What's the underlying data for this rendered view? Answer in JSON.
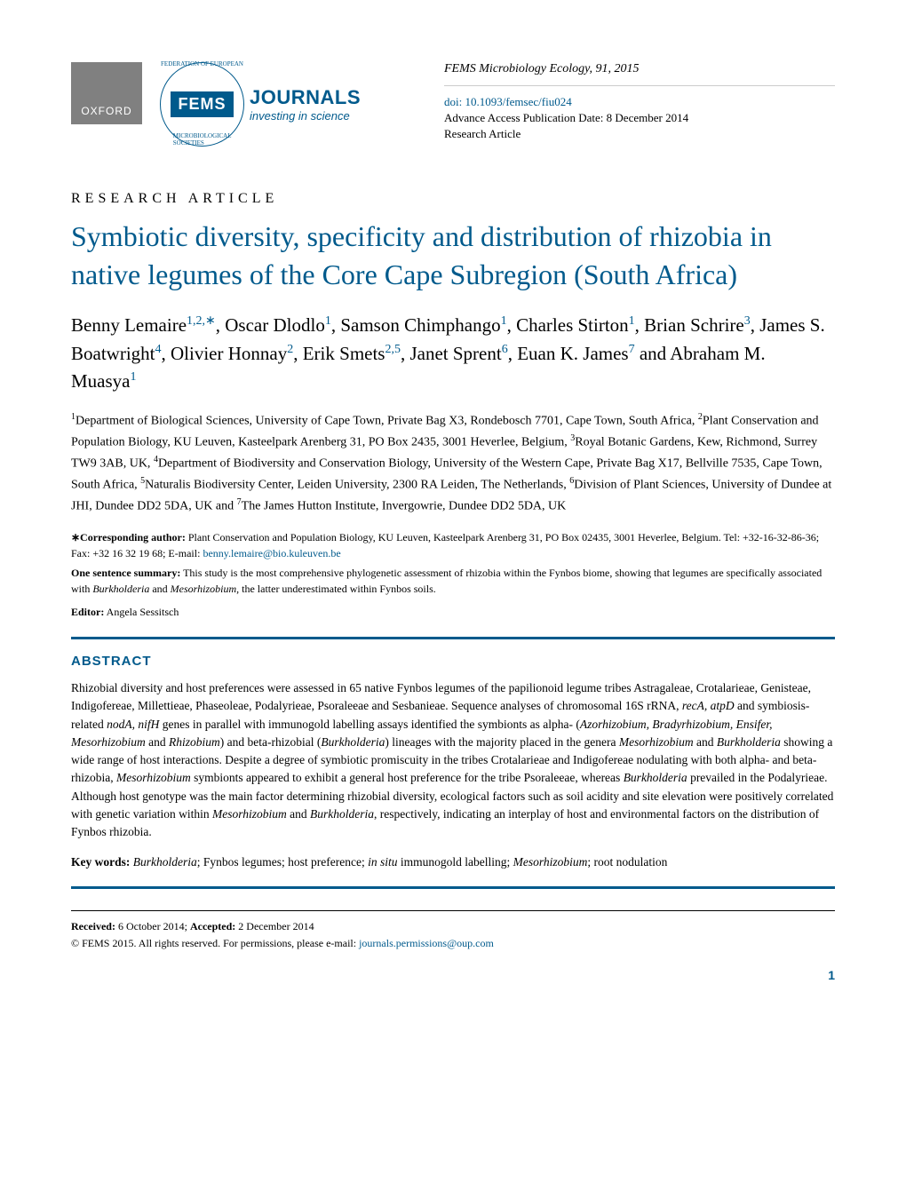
{
  "header": {
    "oxford_label": "OXFORD",
    "fems_label": "FEMS",
    "fems_circle_top": "FEDERATION OF EUROPEAN",
    "fems_circle_bottom": "MICROBIOLOGICAL SOCIETIES",
    "journals_main": "JOURNALS",
    "journals_sub": "investing in science",
    "citation": "FEMS Microbiology Ecology, 91, 2015",
    "doi": "doi: 10.1093/femsec/fiu024",
    "advance_date": "Advance Access Publication Date: 8 December 2014",
    "article_type_small": "Research Article"
  },
  "article": {
    "type": "RESEARCH ARTICLE",
    "title": "Symbiotic diversity, specificity and distribution of rhizobia in native legumes of the Core Cape Subregion (South Africa)",
    "authors_html": "Benny Lemaire<span class='sup'>1,2,∗</span>, Oscar Dlodlo<span class='sup'>1</span>, Samson Chimphango<span class='sup'>1</span>, Charles Stirton<span class='sup'>1</span>, Brian Schrire<span class='sup'>3</span>, James S. Boatwright<span class='sup'>4</span>, Olivier Honnay<span class='sup'>2</span>, Erik Smets<span class='sup'>2,5</span>, Janet Sprent<span class='sup'>6</span>, Euan K. James<span class='sup'>7</span> and Abraham M. Muasya<span class='sup'>1</span>",
    "affiliations_html": "<span class='aff-sup'>1</span>Department of Biological Sciences, University of Cape Town, Private Bag X3, Rondebosch 7701, Cape Town, South Africa, <span class='aff-sup'>2</span>Plant Conservation and Population Biology, KU Leuven, Kasteelpark Arenberg 31, PO Box 2435, 3001 Heverlee, Belgium, <span class='aff-sup'>3</span>Royal Botanic Gardens, Kew, Richmond, Surrey TW9 3AB, UK, <span class='aff-sup'>4</span>Department of Biodiversity and Conservation Biology, University of the Western Cape, Private Bag X17, Bellville 7535, Cape Town, South Africa, <span class='aff-sup'>5</span>Naturalis Biodiversity Center, Leiden University, 2300 RA Leiden, The Netherlands, <span class='aff-sup'>6</span>Division of Plant Sciences, University of Dundee at JHI, Dundee DD2 5DA, UK and <span class='aff-sup'>7</span>The James Hutton Institute, Invergowrie, Dundee DD2 5DA, UK",
    "corresponding_html": "<span class='bold'>∗Corresponding author:</span> Plant Conservation and Population Biology, KU Leuven, Kasteelpark Arenberg 31, PO Box 02435, 3001 Heverlee, Belgium. Tel: +32-16-32-86-36; Fax: +32 16 32 19 68; E-mail: <span class='email-link'>benny.lemaire@bio.kuleuven.be</span>",
    "one_sentence_html": "<span class='bold'>One sentence summary:</span> This study is the most comprehensive phylogenetic assessment of rhizobia within the Fynbos biome, showing that legumes are specifically associated with <span class='italic'>Burkholderia</span> and <span class='italic'>Mesorhizobium</span>, the latter underestimated within Fynbos soils.",
    "editor_html": "<span class='bold'>Editor:</span> Angela Sessitsch"
  },
  "abstract": {
    "heading": "ABSTRACT",
    "text_html": "Rhizobial diversity and host preferences were assessed in 65 native Fynbos legumes of the papilionoid legume tribes Astragaleae, Crotalarieae, Genisteae, Indigofereae, Millettieae, Phaseoleae, Podalyrieae, Psoraleeae and Sesbanieae. Sequence analyses of chromosomal 16S rRNA, <span class='italic'>recA, atpD</span> and symbiosis-related <span class='italic'>nodA, nifH</span> genes in parallel with immunogold labelling assays identified the symbionts as alpha- (<span class='italic'>Azorhizobium, Bradyrhizobium, Ensifer, Mesorhizobium</span> and <span class='italic'>Rhizobium</span>) and beta-rhizobial (<span class='italic'>Burkholderia</span>) lineages with the majority placed in the genera <span class='italic'>Mesorhizobium</span> and <span class='italic'>Burkholderia</span> showing a wide range of host interactions. Despite a degree of symbiotic promiscuity in the tribes Crotalarieae and Indigofereae nodulating with both alpha- and beta-rhizobia, <span class='italic'>Mesorhizobium</span> symbionts appeared to exhibit a general host preference for the tribe Psoraleeae, whereas <span class='italic'>Burkholderia</span> prevailed in the Podalyrieae. Although host genotype was the main factor determining rhizobial diversity, ecological factors such as soil acidity and site elevation were positively correlated with genetic variation within <span class='italic'>Mesorhizobium</span> and <span class='italic'>Burkholderia</span>, respectively, indicating an interplay of host and environmental factors on the distribution of Fynbos rhizobia.",
    "keywords_html": "<span class='bold'>Key words:</span> <span class='italic'>Burkholderia</span>; Fynbos legumes; host preference; <span class='italic'>in situ</span> immunogold labelling; <span class='italic'>Mesorhizobium</span>; root nodulation"
  },
  "footer": {
    "received_html": "<span class='bold'>Received:</span> 6 October 2014; <span class='bold'>Accepted:</span> 2 December 2014",
    "copyright_html": "© FEMS 2015. All rights reserved. For permissions, please e-mail: <span class='email-link'>journals.permissions@oup.com</span>",
    "page_number": "1"
  },
  "colors": {
    "primary_blue": "#005a8c",
    "oxford_gray": "#808080",
    "divider_gray": "#cccccc",
    "text_black": "#000000",
    "background": "#ffffff"
  }
}
